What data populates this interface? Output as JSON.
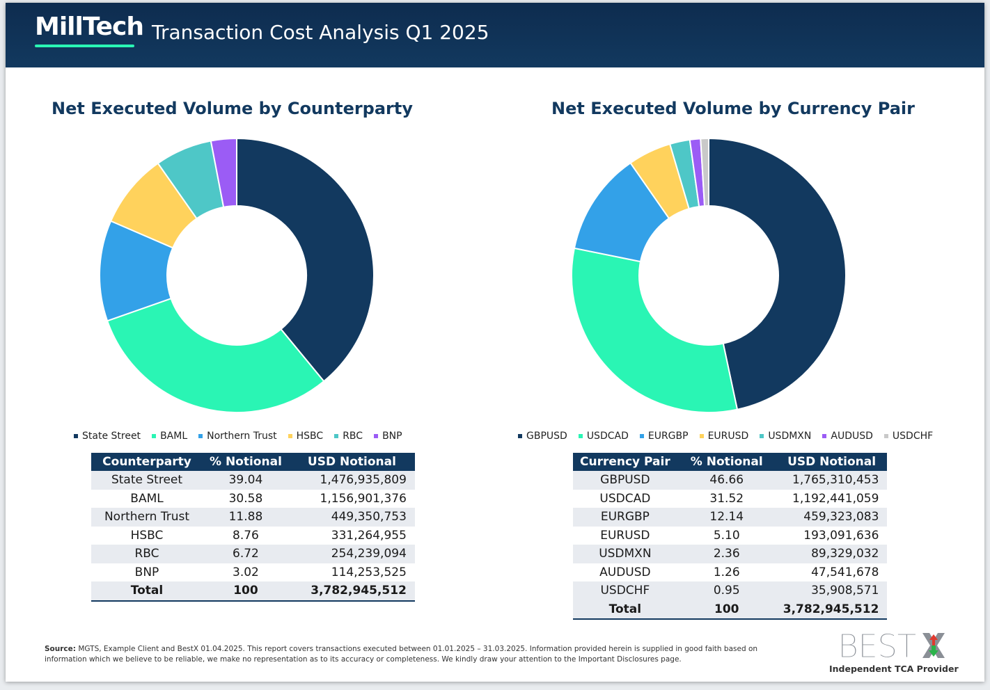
{
  "header": {
    "logo": "MillTech",
    "title": "Transaction Cost Analysis Q1 2025"
  },
  "chart_data": [
    {
      "type": "pie",
      "title": "Net Executed Volume by Counterparty",
      "categories": [
        "State Street",
        "BAML",
        "Northern Trust",
        "HSBC",
        "RBC",
        "BNP"
      ],
      "values": [
        39.04,
        30.58,
        11.88,
        8.76,
        6.72,
        3.02
      ],
      "colors": [
        "#12395f",
        "#2af5b4",
        "#33a1e8",
        "#ffd25c",
        "#4ec7c7",
        "#9b5cf5"
      ],
      "legend_position": "bottom"
    },
    {
      "type": "pie",
      "title": "Net Executed Volume by Currency Pair",
      "categories": [
        "GBPUSD",
        "USDCAD",
        "EURGBP",
        "EURUSD",
        "USDMXN",
        "AUDUSD",
        "USDCHF"
      ],
      "values": [
        46.66,
        31.52,
        12.14,
        5.1,
        2.36,
        1.26,
        0.95
      ],
      "colors": [
        "#12395f",
        "#2af5b4",
        "#33a1e8",
        "#ffd25c",
        "#4ec7c7",
        "#9b5cf5",
        "#c9c9c9"
      ],
      "legend_position": "bottom"
    }
  ],
  "counterparty_table": {
    "headers": [
      "Counterparty",
      "% Notional",
      "USD Notional"
    ],
    "rows": [
      [
        "State Street",
        "39.04",
        "1,476,935,809"
      ],
      [
        "BAML",
        "30.58",
        "1,156,901,376"
      ],
      [
        "Northern Trust",
        "11.88",
        "449,350,753"
      ],
      [
        "HSBC",
        "8.76",
        "331,264,955"
      ],
      [
        "RBC",
        "6.72",
        "254,239,094"
      ],
      [
        "BNP",
        "3.02",
        "114,253,525"
      ]
    ],
    "total": [
      "Total",
      "100",
      "3,782,945,512"
    ]
  },
  "currency_table": {
    "headers": [
      "Currency Pair",
      "% Notional",
      "USD Notional"
    ],
    "rows": [
      [
        "GBPUSD",
        "46.66",
        "1,765,310,453"
      ],
      [
        "USDCAD",
        "31.52",
        "1,192,441,059"
      ],
      [
        "EURGBP",
        "12.14",
        "459,323,083"
      ],
      [
        "EURUSD",
        "5.10",
        "193,091,636"
      ],
      [
        "USDMXN",
        "2.36",
        "89,329,032"
      ],
      [
        "AUDUSD",
        "1.26",
        "47,541,678"
      ],
      [
        "USDCHF",
        "0.95",
        "35,908,571"
      ]
    ],
    "total": [
      "Total",
      "100",
      "3,782,945,512"
    ]
  },
  "footer": {
    "source_label": "Source:",
    "source_text": "MGTS, Example Client and BestX 01.04.2025. This report covers transactions executed between 01.01.2025 – 31.03.2025. Information provided herein is supplied in good faith based on information which we believe to be reliable, we make no representation as to its accuracy or completeness.  We kindly draw your attention to the Important Disclosures page.",
    "brand": "BEST",
    "brand_tagline": "Independent TCA Provider"
  }
}
